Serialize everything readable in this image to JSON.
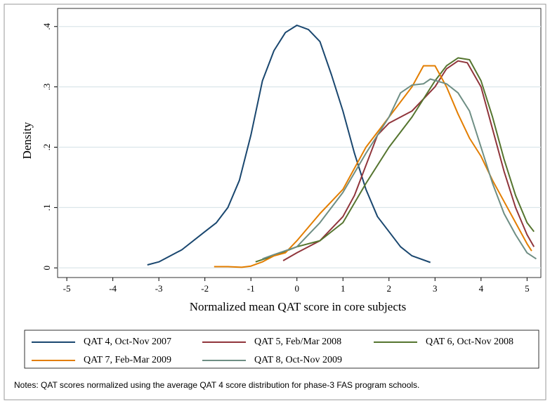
{
  "chart_data": {
    "type": "line",
    "xlabel": "Normalized mean QAT score in core subjects",
    "ylabel": "Density",
    "note": "Notes: QAT scores normalized using the average QAT 4 score distribution for phase-3 FAS program schools.",
    "xlim": [
      -5.2,
      5.3
    ],
    "ylim": [
      -0.016,
      0.43
    ],
    "xticks": [
      -5,
      -4,
      -3,
      -2,
      -1,
      0,
      1,
      2,
      3,
      4,
      5
    ],
    "yticks": [
      0,
      {
        "value": 0.1,
        "label": ".1"
      },
      {
        "value": 0.2,
        "label": ".2"
      },
      {
        "value": 0.3,
        "label": ".3"
      },
      {
        "value": 0.4,
        "label": ".4"
      }
    ],
    "grid": true,
    "legend": "bottom",
    "series": [
      {
        "name": "QAT 4, Oct-Nov 2007",
        "color": "#1a476f",
        "x": [
          -3.25,
          -3,
          -2.5,
          -2,
          -1.75,
          -1.5,
          -1.25,
          -1,
          -0.75,
          -0.5,
          -0.25,
          0,
          0.25,
          0.5,
          0.75,
          1,
          1.25,
          1.5,
          1.75,
          2,
          2.25,
          2.5,
          2.9
        ],
        "values": [
          0.005,
          0.01,
          0.03,
          0.06,
          0.075,
          0.1,
          0.145,
          0.22,
          0.31,
          0.36,
          0.39,
          0.402,
          0.395,
          0.375,
          0.32,
          0.26,
          0.19,
          0.13,
          0.085,
          0.06,
          0.035,
          0.02,
          0.009
        ]
      },
      {
        "name": "QAT 5, Feb/Mar 2008",
        "color": "#90353b",
        "x": [
          -0.3,
          0,
          0.5,
          1,
          1.25,
          1.5,
          1.75,
          2,
          2.5,
          3,
          3.25,
          3.5,
          3.7,
          4,
          4.25,
          4.5,
          4.75,
          5,
          5.15
        ],
        "values": [
          0.012,
          0.025,
          0.045,
          0.085,
          0.12,
          0.17,
          0.22,
          0.24,
          0.26,
          0.3,
          0.33,
          0.343,
          0.34,
          0.3,
          0.23,
          0.16,
          0.1,
          0.055,
          0.035
        ]
      },
      {
        "name": "QAT 6, Oct-Nov 2008",
        "color": "#55752f",
        "x": [
          -0.9,
          -0.5,
          0,
          0.5,
          1,
          1.5,
          2,
          2.5,
          3,
          3.25,
          3.5,
          3.75,
          4,
          4.25,
          4.5,
          4.75,
          5,
          5.15
        ],
        "values": [
          0.01,
          0.02,
          0.035,
          0.045,
          0.075,
          0.14,
          0.2,
          0.25,
          0.31,
          0.335,
          0.348,
          0.345,
          0.31,
          0.25,
          0.18,
          0.12,
          0.075,
          0.06
        ]
      },
      {
        "name": "QAT 7, Feb-Mar 2009",
        "color": "#e37e00",
        "x": [
          -1.8,
          -1.5,
          -1.2,
          -1,
          -0.75,
          -0.5,
          -0.25,
          0,
          0.5,
          1,
          1.5,
          2,
          2.5,
          2.75,
          3,
          3.25,
          3.5,
          3.75,
          4,
          4.25,
          4.5,
          4.75,
          5,
          5.1
        ],
        "values": [
          0.002,
          0.002,
          0.001,
          0.003,
          0.01,
          0.02,
          0.025,
          0.045,
          0.09,
          0.13,
          0.2,
          0.25,
          0.3,
          0.335,
          0.335,
          0.3,
          0.255,
          0.215,
          0.185,
          0.145,
          0.11,
          0.075,
          0.04,
          0.028
        ]
      },
      {
        "name": "QAT 8, Oct-Nov 2009",
        "color": "#6e8e84",
        "x": [
          -0.75,
          -0.5,
          0,
          0.5,
          1,
          1.5,
          2,
          2.25,
          2.5,
          2.75,
          2.9,
          3.25,
          3.5,
          3.75,
          4,
          4.25,
          4.5,
          4.75,
          5,
          5.2
        ],
        "values": [
          0.015,
          0.022,
          0.035,
          0.075,
          0.125,
          0.19,
          0.25,
          0.29,
          0.303,
          0.305,
          0.313,
          0.305,
          0.29,
          0.26,
          0.2,
          0.14,
          0.09,
          0.055,
          0.025,
          0.015
        ]
      }
    ]
  }
}
